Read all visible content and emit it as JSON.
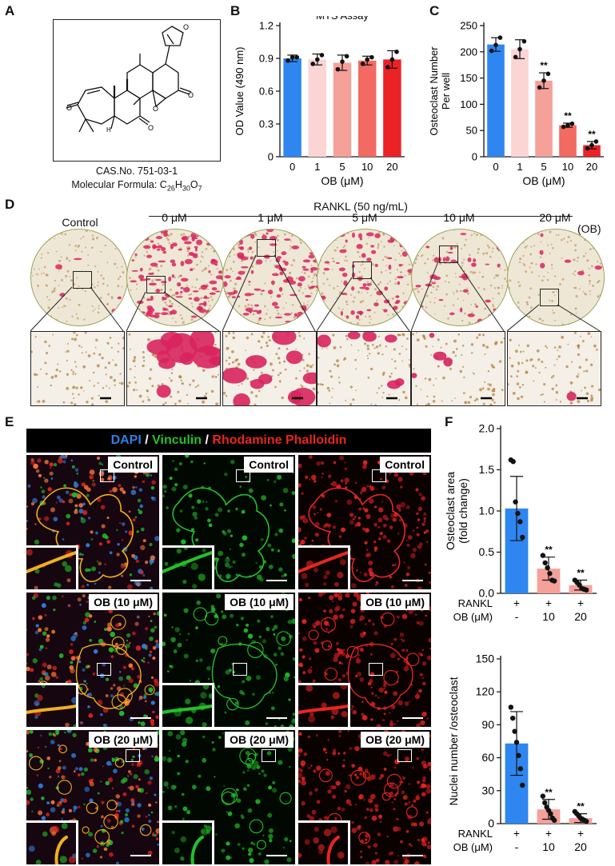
{
  "panels": {
    "a": "A",
    "b": "B",
    "c": "C",
    "d": "D",
    "e": "E",
    "f": "F"
  },
  "structure": {
    "cas": "CAS.No. 751-03-1",
    "formula_prefix": "Molecular Formula: C",
    "formula_c": "26",
    "formula_h": "30",
    "formula_o": "7",
    "h_label": "H",
    "o_label": "O"
  },
  "colors": {
    "blue": "#2f86f0",
    "c1": "#fbd4d4",
    "c5": "#f6a09a",
    "c10": "#f26a62",
    "c20": "#ea2226",
    "stain": "#d8245e",
    "dapi": "#2f7fe0",
    "vinculin": "#22c12a",
    "phalloidin": "#e8261f"
  },
  "chart_data": [
    {
      "id": "B",
      "type": "bar",
      "title": "MTS Assay",
      "xlabel": "OB (μM)",
      "ylabel": "OD Value (490 nm)",
      "categories": [
        "0",
        "1",
        "5",
        "10",
        "20"
      ],
      "values": [
        0.9,
        0.89,
        0.86,
        0.88,
        0.89
      ],
      "errors": [
        0.03,
        0.05,
        0.07,
        0.04,
        0.08
      ],
      "points": [
        [
          0.88,
          0.91,
          0.91
        ],
        [
          0.85,
          0.89,
          0.93
        ],
        [
          0.8,
          0.87,
          0.92
        ],
        [
          0.85,
          0.89,
          0.91
        ],
        [
          0.82,
          0.89,
          0.96
        ]
      ],
      "significance": [
        "",
        "",
        "",
        "",
        ""
      ],
      "yticks": [
        "0",
        "0.3",
        "0.6",
        "0.9",
        "1.2"
      ],
      "ylim": [
        0,
        1.2
      ],
      "grid": false
    },
    {
      "id": "C",
      "type": "bar",
      "title": "",
      "xlabel": "OB (μM)",
      "ylabel_line1": "Osteoclast Number",
      "ylabel_line2": "Per well",
      "categories": [
        "0",
        "1",
        "5",
        "10",
        "20"
      ],
      "values": [
        214,
        205,
        145,
        60,
        22
      ],
      "errors": [
        13,
        18,
        15,
        4,
        7
      ],
      "points": [
        [
          202,
          213,
          227
        ],
        [
          190,
          205,
          220
        ],
        [
          132,
          145,
          158
        ],
        [
          57,
          60,
          63
        ],
        [
          16,
          22,
          29
        ]
      ],
      "significance": [
        "",
        "",
        "**",
        "**",
        "**"
      ],
      "yticks": [
        "0",
        "50",
        "100",
        "150",
        "200",
        "250"
      ],
      "ylim": [
        0,
        250
      ],
      "grid": false
    },
    {
      "id": "F1",
      "type": "bar",
      "title": "",
      "ylabel_line1": "Osteoclast area",
      "ylabel_line2": "(fold change)",
      "row1_label": "RANKL",
      "row2_label": "OB (μM)",
      "row1": [
        "+",
        "+",
        "+"
      ],
      "row2": [
        "-",
        "10",
        "20"
      ],
      "values": [
        1.03,
        0.3,
        0.1
      ],
      "errors": [
        0.39,
        0.14,
        0.06
      ],
      "points": [
        [
          1.62,
          1.6,
          1.11,
          0.97,
          0.87,
          0.68
        ],
        [
          0.46,
          0.37,
          0.31,
          0.24,
          0.16,
          0.15
        ],
        [
          0.16,
          0.13,
          0.1,
          0.06,
          0.05,
          0.04
        ]
      ],
      "significance": [
        "",
        "**",
        "**"
      ],
      "yticks": [
        "0.0",
        "0.5",
        "1.0",
        "1.5",
        "2.0"
      ],
      "ylim": [
        0,
        2.0
      ],
      "grid": false
    },
    {
      "id": "F2",
      "type": "bar",
      "title": "",
      "ylabel": "Nuclei number /osteoclast",
      "row1_label": "RANKL",
      "row2_label": "OB (μM)",
      "row1": [
        "+",
        "+",
        "+"
      ],
      "row2": [
        "-",
        "10",
        "20"
      ],
      "values": [
        73,
        13,
        5
      ],
      "errors": [
        29,
        9,
        4
      ],
      "points": [
        [
          106,
          96,
          84,
          74,
          62,
          50,
          35
        ],
        [
          25,
          19,
          15,
          12,
          9,
          5,
          3
        ],
        [
          11,
          9,
          7,
          5,
          4,
          3,
          2
        ]
      ],
      "significance": [
        "",
        "**",
        "**"
      ],
      "yticks": [
        "0",
        "30",
        "60",
        "90",
        "120",
        "150"
      ],
      "ylim": [
        0,
        150
      ],
      "grid": false
    }
  ],
  "trap": {
    "rankl_label": "RANKL (50 ng/mL)",
    "ob_tag": "(OB)",
    "control_label": "Control",
    "doses": [
      "0 μM",
      "1 μM",
      "5 μM",
      "10 μM",
      "20 μM"
    ],
    "stain_density": [
      0.02,
      0.5,
      0.45,
      0.28,
      0.18,
      0.03
    ]
  },
  "if": {
    "legend_dapi": "DAPI",
    "legend_slash1": " / ",
    "legend_vinculin": "Vinculin",
    "legend_slash2": " / ",
    "legend_phalloidin": "Rhodamine Phalloidin",
    "row_labels": [
      "Control",
      "OB (10 μM)",
      "OB (20 μM)"
    ]
  }
}
